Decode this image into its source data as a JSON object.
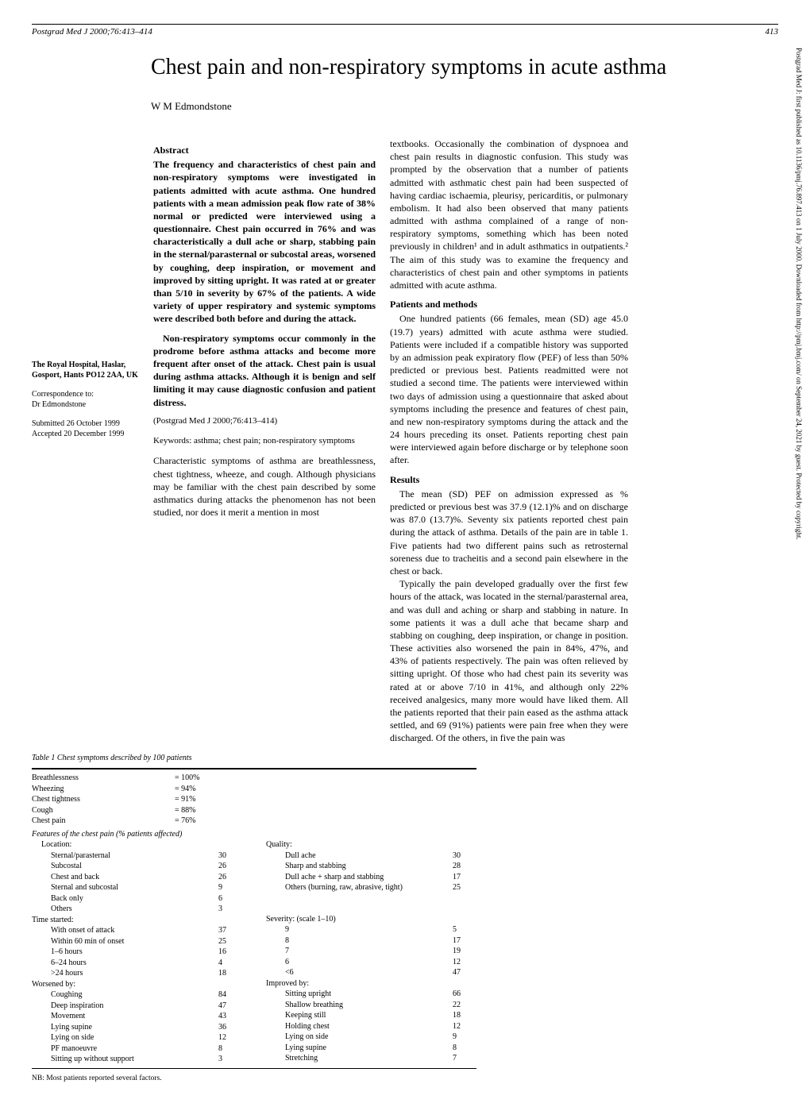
{
  "header": {
    "journal": "Postgrad Med J 2000;76:413–414",
    "page": "413"
  },
  "title": "Chest pain and non-respiratory symptoms in acute asthma",
  "author": "W M Edmondstone",
  "sidebar": {
    "affiliation": "The Royal Hospital, Haslar, Gosport, Hants PO12 2AA, UK",
    "correspondence_label": "Correspondence to:",
    "correspondence_name": "Dr Edmondstone",
    "submitted": "Submitted 26 October 1999",
    "accepted": "Accepted 20 December 1999"
  },
  "abstract": {
    "heading": "Abstract",
    "p1": "The frequency and characteristics of chest pain and non-respiratory symptoms were investigated in patients admitted with acute asthma. One hundred patients with a mean admission peak flow rate of 38% normal or predicted were interviewed using a questionnaire. Chest pain occurred in 76% and was characteristically a dull ache or sharp, stabbing pain in the sternal/parasternal or subcostal areas, worsened by coughing, deep inspiration, or movement and improved by sitting upright. It was rated at or greater than 5/10 in severity by 67% of the patients. A wide variety of upper respiratory and systemic symptoms were described both before and during the attack.",
    "p2": "Non-respiratory symptoms occur commonly in the prodrome before asthma attacks and become more frequent after onset of the attack. Chest pain is usual during asthma attacks. Although it is benign and self limiting it may cause diagnostic confusion and patient distress.",
    "citation": "(Postgrad Med J 2000;76:413–414)",
    "keywords": "Keywords: asthma; chest pain; non-respiratory symptoms"
  },
  "intro": {
    "p1": "Characteristic symptoms of asthma are breathlessness, chest tightness, wheeze, and cough. Although physicians may be familiar with the chest pain described by some asthmatics during attacks the phenomenon has not been studied, nor does it merit a mention in most"
  },
  "col2": {
    "intro_cont": "textbooks. Occasionally the combination of dyspnoea and chest pain results in diagnostic confusion. This study was prompted by the observation that a number of patients admitted with asthmatic chest pain had been suspected of having cardiac ischaemia, pleurisy, pericarditis, or pulmonary embolism. It had also been observed that many patients admitted with asthma complained of a range of non-respiratory symptoms, something which has been noted previously in children¹ and in adult asthmatics in outpatients.² The aim of this study was to examine the frequency and characteristics of chest pain and other symptoms in patients admitted with acute asthma.",
    "methods_head": "Patients and methods",
    "methods_p1": "One hundred patients (66 females, mean (SD) age 45.0 (19.7) years) admitted with acute asthma were studied. Patients were included if a compatible history was supported by an admission peak expiratory flow (PEF) of less than 50% predicted or previous best. Patients readmitted were not studied a second time. The patients were interviewed within two days of admission using a questionnaire that asked about symptoms including the presence and features of chest pain, and new non-respiratory symptoms during the attack and the 24 hours preceding its onset. Patients reporting chest pain were interviewed again before discharge or by telephone soon after.",
    "results_head": "Results",
    "results_p1": "The mean (SD) PEF on admission expressed as % predicted or previous best was 37.9 (12.1)% and on discharge was 87.0 (13.7)%. Seventy six patients reported chest pain during the attack of asthma. Details of the pain are in table 1. Five patients had two different pains such as retrosternal soreness due to tracheitis and a second pain elsewhere in the chest or back.",
    "results_p2": "Typically the pain developed gradually over the first few hours of the attack, was located in the sternal/parasternal area, and was dull and aching or sharp and stabbing in nature. In some patients it was a dull ache that became sharp and stabbing on coughing, deep inspiration, or change in position. These activities also worsened the pain in 84%, 47%, and 43% of patients respectively. The pain was often relieved by sitting upright. Of those who had chest pain its severity was rated at or above 7/10 in 41%, and although only 22% received analgesics, many more would have liked them. All the patients reported that their pain eased as the asthma attack settled, and 69 (91%) patients were pain free when they were discharged. Of the others, in five the pain was"
  },
  "table1": {
    "caption": "Table 1    Chest symptoms described by 100 patients",
    "top_rows": [
      {
        "label": "Breathlessness",
        "val": "= 100%"
      },
      {
        "label": "Wheezing",
        "val": "= 94%"
      },
      {
        "label": "Chest tightness",
        "val": "= 91%"
      },
      {
        "label": "Cough",
        "val": "= 88%"
      },
      {
        "label": "Chest pain",
        "val": "= 76%"
      }
    ],
    "features_head": "Features of the chest pain (% patients affected)",
    "location_head": "Location:",
    "location": [
      {
        "label": "Sternal/parasternal",
        "val": "30"
      },
      {
        "label": "Subcostal",
        "val": "26"
      },
      {
        "label": "Chest and back",
        "val": "26"
      },
      {
        "label": "Sternal and subcostal",
        "val": "9"
      },
      {
        "label": "Back only",
        "val": "6"
      },
      {
        "label": "Others",
        "val": "3"
      }
    ],
    "quality_head": "Quality:",
    "quality": [
      {
        "label": "Dull ache",
        "val": "30"
      },
      {
        "label": "Sharp and stabbing",
        "val": "28"
      },
      {
        "label": "Dull ache + sharp and stabbing",
        "val": "17"
      },
      {
        "label": "Others (burning, raw, abrasive, tight)",
        "val": "25"
      }
    ],
    "time_head": "Time started:",
    "time": [
      {
        "label": "With onset of attack",
        "val": "37"
      },
      {
        "label": "Within 60 min of onset",
        "val": "25"
      },
      {
        "label": "1–6 hours",
        "val": "16"
      },
      {
        "label": "6–24 hours",
        "val": "4"
      },
      {
        "label": ">24 hours",
        "val": "18"
      }
    ],
    "severity_head": "Severity: (scale 1–10)",
    "severity": [
      {
        "label": "9",
        "val": "5"
      },
      {
        "label": "8",
        "val": "17"
      },
      {
        "label": "7",
        "val": "19"
      },
      {
        "label": "6",
        "val": "12"
      },
      {
        "label": "<6",
        "val": "47"
      }
    ],
    "worsened_head": "Worsened by:",
    "worsened": [
      {
        "label": "Coughing",
        "val": "84"
      },
      {
        "label": "Deep inspiration",
        "val": "47"
      },
      {
        "label": "Movement",
        "val": "43"
      },
      {
        "label": "Lying supine",
        "val": "36"
      },
      {
        "label": "Lying on side",
        "val": "12"
      },
      {
        "label": "PF manoeuvre",
        "val": "8"
      },
      {
        "label": "Sitting up without support",
        "val": "3"
      }
    ],
    "improved_head": "Improved by:",
    "improved": [
      {
        "label": "Sitting upright",
        "val": "66"
      },
      {
        "label": "Shallow breathing",
        "val": "22"
      },
      {
        "label": "Keeping still",
        "val": "18"
      },
      {
        "label": "Holding chest",
        "val": "12"
      },
      {
        "label": "Lying on side",
        "val": "9"
      },
      {
        "label": "Lying supine",
        "val": "8"
      },
      {
        "label": "Stretching",
        "val": "7"
      }
    ],
    "note": "NB: Most patients reported several factors."
  },
  "right_note": "Postgrad Med J: first published as 10.1136/pmj.76.897.413 on 1 July 2000. Downloaded from http://pmj.bmj.com/ on September 24, 2021 by guest. Protected by copyright."
}
